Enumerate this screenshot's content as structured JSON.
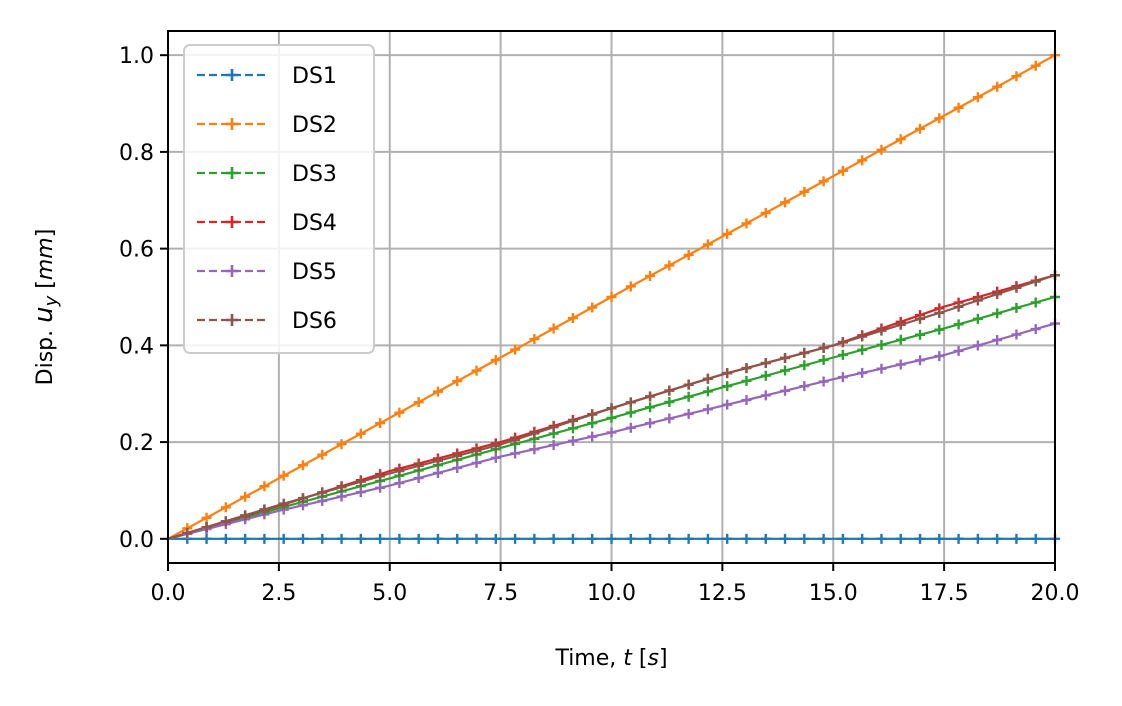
{
  "chart_data": {
    "type": "line",
    "title": "",
    "xlabel": {
      "prefix": "Time, ",
      "var": "t",
      "unit": "s"
    },
    "ylabel": {
      "prefix": "Disp. ",
      "var": "u",
      "sub": "y",
      "unit": "mm"
    },
    "xlim": [
      0.0,
      20.0
    ],
    "ylim": [
      -0.05,
      1.05
    ],
    "xticks": [
      0.0,
      2.5,
      5.0,
      7.5,
      10.0,
      12.5,
      15.0,
      17.5,
      20.0
    ],
    "xtick_labels": [
      "0.0",
      "2.5",
      "5.0",
      "7.5",
      "10.0",
      "12.5",
      "15.0",
      "17.5",
      "20.0"
    ],
    "yticks": [
      0.0,
      0.2,
      0.4,
      0.6,
      0.8,
      1.0
    ],
    "ytick_labels": [
      "0.0",
      "0.2",
      "0.4",
      "0.6",
      "0.8",
      "1.0"
    ],
    "grid": true,
    "legend_position": "top-left",
    "series": [
      {
        "name": "DS1",
        "color": "#1f77b4",
        "x": [
          0,
          5,
          10,
          15,
          20
        ],
        "y": [
          0.0,
          0.0,
          0.0,
          0.0,
          0.0
        ]
      },
      {
        "name": "DS2",
        "color": "#ff7f0e",
        "x": [
          0,
          2.5,
          5,
          7.5,
          10,
          12.5,
          15,
          17.5,
          20
        ],
        "y": [
          0.0,
          0.125,
          0.25,
          0.375,
          0.5,
          0.625,
          0.75,
          0.875,
          1.0
        ]
      },
      {
        "name": "DS3",
        "color": "#2ca02c",
        "x": [
          0,
          2.5,
          5,
          7.5,
          10,
          12.5,
          15,
          17.5,
          20
        ],
        "y": [
          0.0,
          0.063,
          0.125,
          0.188,
          0.25,
          0.313,
          0.375,
          0.435,
          0.5
        ]
      },
      {
        "name": "DS4",
        "color": "#d62728",
        "x": [
          0,
          2.5,
          5,
          7.5,
          10,
          12.5,
          15,
          17.5,
          20
        ],
        "y": [
          0.0,
          0.068,
          0.14,
          0.2,
          0.27,
          0.34,
          0.4,
          0.48,
          0.545
        ]
      },
      {
        "name": "DS5",
        "color": "#9467bd",
        "x": [
          0,
          2.5,
          5,
          7.5,
          10,
          12.5,
          15,
          17.5,
          20
        ],
        "y": [
          0.0,
          0.058,
          0.11,
          0.17,
          0.22,
          0.275,
          0.33,
          0.38,
          0.445
        ]
      },
      {
        "name": "DS6",
        "color": "#8c564b",
        "x": [
          0,
          2.5,
          5,
          7.5,
          10,
          12.5,
          15,
          17.5,
          20
        ],
        "y": [
          0.0,
          0.07,
          0.135,
          0.195,
          0.27,
          0.34,
          0.4,
          0.47,
          0.545
        ]
      }
    ]
  }
}
